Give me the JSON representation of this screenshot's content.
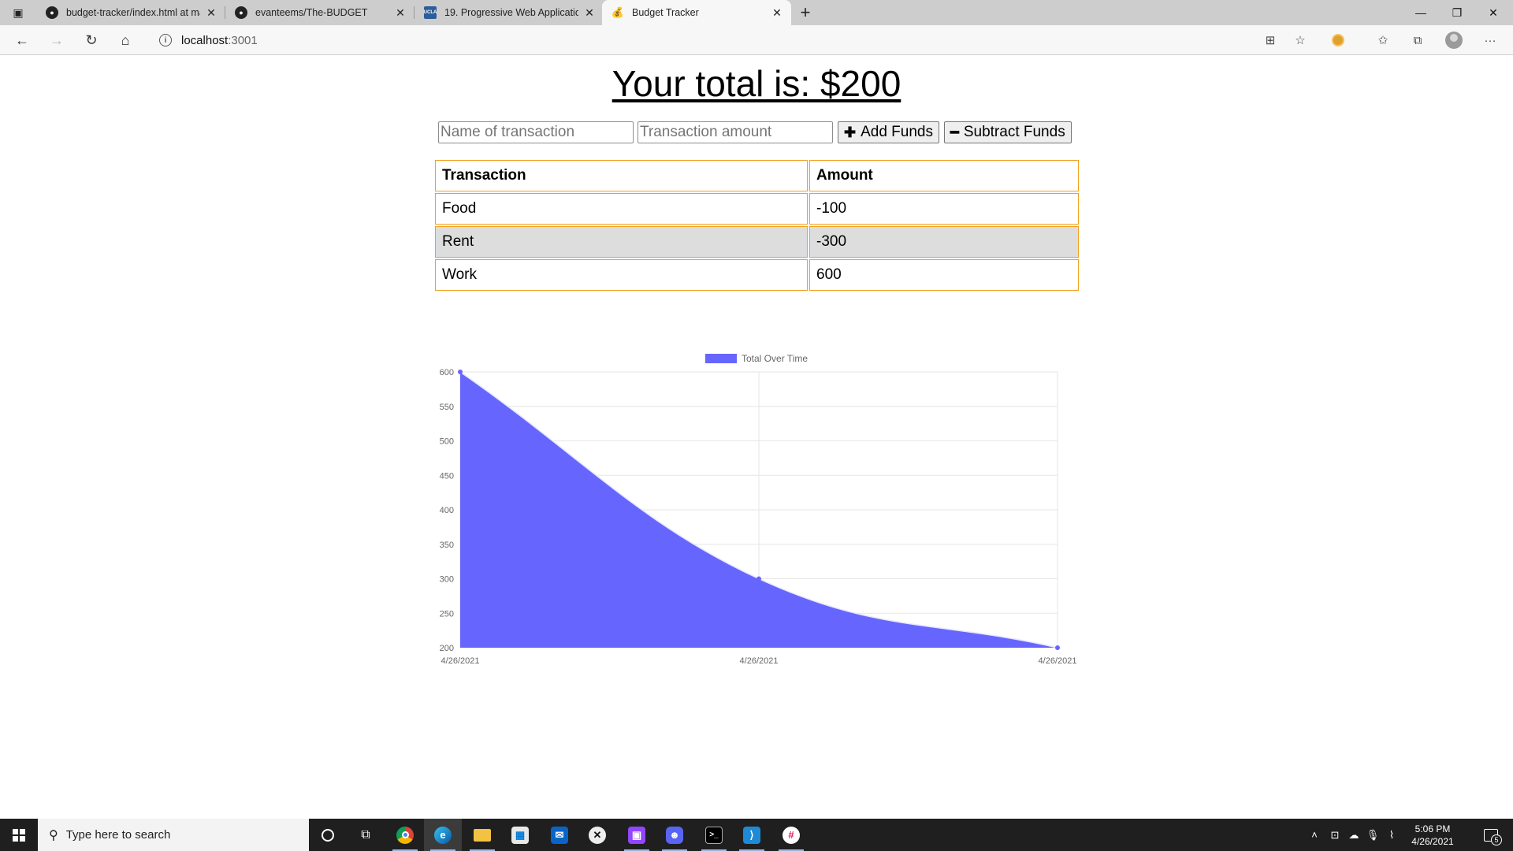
{
  "browser": {
    "tabs": [
      {
        "title": "budget-tracker/index.html at ma",
        "favicon": "github-icon",
        "active": false
      },
      {
        "title": "evanteems/The-BUDGET",
        "favicon": "github-icon",
        "active": false
      },
      {
        "title": "19. Progressive Web Application",
        "favicon": "ucla-icon",
        "active": false
      },
      {
        "title": "Budget Tracker",
        "favicon": "money-bag-icon",
        "active": true
      }
    ],
    "address": {
      "host": "localhost",
      "port": ":3001"
    }
  },
  "page": {
    "total_text": "Your total is: $200",
    "form": {
      "name_placeholder": "Name of transaction",
      "amount_placeholder": "Transaction amount",
      "add_label": "Add Funds",
      "subtract_label": "Subtract Funds"
    },
    "table": {
      "headers": [
        "Transaction",
        "Amount"
      ],
      "rows": [
        {
          "name": "Food",
          "amount": "-100"
        },
        {
          "name": "Rent",
          "amount": "-300"
        },
        {
          "name": "Work",
          "amount": "600"
        }
      ]
    }
  },
  "chart_data": {
    "type": "area",
    "x": [
      "4/26/2021",
      "4/26/2021",
      "4/26/2021"
    ],
    "series": [
      {
        "name": "Total Over Time",
        "values": [
          600,
          300,
          200
        ]
      }
    ],
    "ylim": [
      200,
      600
    ],
    "yticks": [
      200,
      250,
      300,
      350,
      400,
      450,
      500,
      550,
      600
    ],
    "grid": true,
    "legend": "top",
    "fill_color": "#6666ff"
  },
  "taskbar": {
    "search_placeholder": "Type here to search",
    "time": "5:06 PM",
    "date": "4/26/2021",
    "notification_count": "5",
    "pinned": [
      "task-view",
      "chrome",
      "edge",
      "file-explorer",
      "store",
      "mail",
      "xbox",
      "twitch",
      "discord",
      "terminal",
      "vscode",
      "slack"
    ]
  }
}
